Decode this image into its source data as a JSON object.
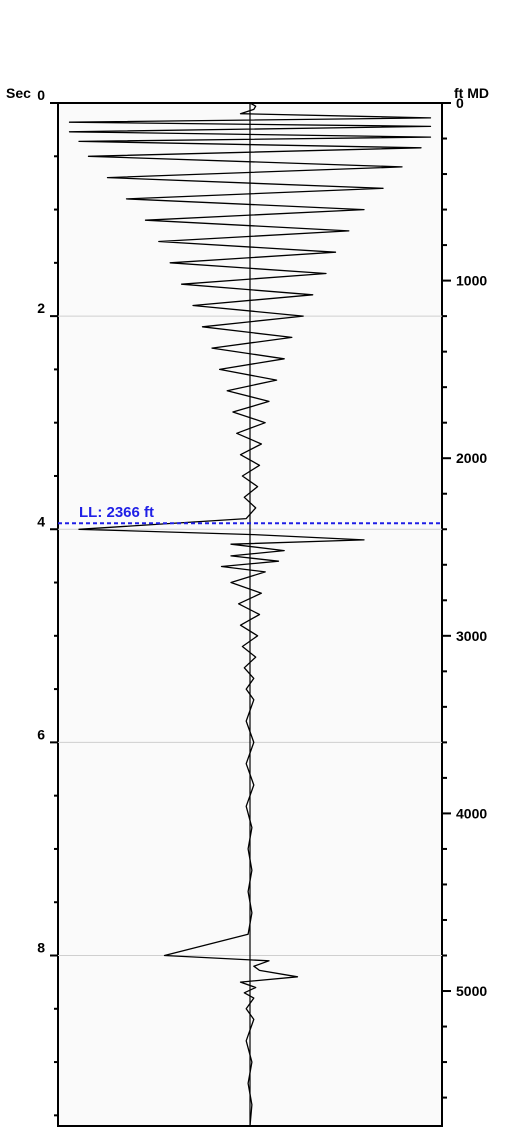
{
  "chart_data": {
    "type": "line",
    "left_axis": {
      "label": "Sec",
      "ylim": [
        0,
        9.6
      ],
      "tick_labels": [
        "0",
        "2",
        "4",
        "6",
        "8"
      ],
      "tick_values": [
        0,
        2,
        4,
        6,
        8
      ],
      "minor_tick_values": [
        0.5,
        1,
        1.5,
        2.5,
        3,
        3.5,
        4.5,
        5,
        5.5,
        6.5,
        7,
        7.5,
        8.5,
        9,
        9.5
      ]
    },
    "right_axis": {
      "label": "ft MD",
      "ylim": [
        0,
        5760
      ],
      "tick_labels": [
        "0",
        "1000",
        "2000",
        "3000",
        "4000",
        "5000"
      ],
      "tick_values": [
        0,
        1000,
        2000,
        3000,
        4000,
        5000
      ],
      "minor_tick_values": [
        200,
        400,
        600,
        800,
        1200,
        1400,
        1600,
        1800,
        2200,
        2400,
        2600,
        2800,
        3200,
        3400,
        3600,
        3800,
        4200,
        4400,
        4600,
        4800,
        5200,
        5400,
        5600
      ]
    },
    "grid": true,
    "grid_values_sec": [
      2,
      4,
      6,
      8
    ],
    "marker": {
      "label": "LL: 2366 ft",
      "depth_ft": 2366,
      "time_sec": 4.1,
      "color": "#1f1fe6",
      "style": "dashed"
    },
    "series": [
      {
        "type": "wiggle",
        "t": [
          0,
          0.03,
          0.06,
          0.1,
          0.14,
          0.18,
          0.22,
          0.27,
          0.32,
          0.36,
          0.42,
          0.5,
          0.6,
          0.7,
          0.8,
          0.9,
          1.0,
          1.1,
          1.2,
          1.3,
          1.4,
          1.5,
          1.6,
          1.7,
          1.8,
          1.9,
          2.0,
          2.1,
          2.2,
          2.3,
          2.4,
          2.5,
          2.6,
          2.7,
          2.8,
          2.9,
          3.0,
          3.1,
          3.2,
          3.3,
          3.4,
          3.5,
          3.6,
          3.7,
          3.8,
          3.9,
          4.0,
          4.05,
          4.1,
          4.14,
          4.2,
          4.25,
          4.3,
          4.35,
          4.4,
          4.5,
          4.6,
          4.7,
          4.8,
          4.9,
          5.0,
          5.1,
          5.2,
          5.3,
          5.4,
          5.5,
          5.6,
          5.8,
          6.0,
          6.2,
          6.4,
          6.6,
          6.8,
          7.0,
          7.2,
          7.4,
          7.6,
          7.8,
          8.0,
          8.05,
          8.1,
          8.14,
          8.2,
          8.25,
          8.3,
          8.35,
          8.4,
          8.5,
          8.6,
          8.8,
          9.0,
          9.2,
          9.4,
          9.6
        ],
        "amp": [
          0,
          0.03,
          0.02,
          -0.05,
          0.95,
          -0.95,
          0.95,
          -0.95,
          0.95,
          -0.9,
          0.9,
          -0.85,
          0.8,
          -0.75,
          0.7,
          -0.65,
          0.6,
          -0.55,
          0.52,
          -0.48,
          0.45,
          -0.42,
          0.4,
          -0.36,
          0.33,
          -0.3,
          0.28,
          -0.25,
          0.22,
          -0.2,
          0.18,
          -0.16,
          0.14,
          -0.12,
          0.1,
          -0.09,
          0.08,
          -0.07,
          0.06,
          -0.05,
          0.05,
          -0.04,
          0.04,
          -0.03,
          0.03,
          -0.02,
          -0.9,
          0.02,
          0.6,
          -0.1,
          0.18,
          -0.1,
          0.15,
          -0.15,
          0.08,
          -0.1,
          0.06,
          -0.06,
          0.05,
          -0.05,
          0.04,
          -0.04,
          0.03,
          -0.03,
          0.02,
          -0.02,
          0.02,
          -0.02,
          0.02,
          -0.02,
          0.02,
          -0.02,
          0.01,
          -0.01,
          0.01,
          -0.01,
          0.01,
          -0.01,
          -0.45,
          0.1,
          0.02,
          0.05,
          0.25,
          -0.05,
          0.03,
          -0.03,
          0.02,
          -0.02,
          0.02,
          -0.02,
          0.01,
          -0.01,
          0.01,
          0
        ]
      }
    ]
  }
}
